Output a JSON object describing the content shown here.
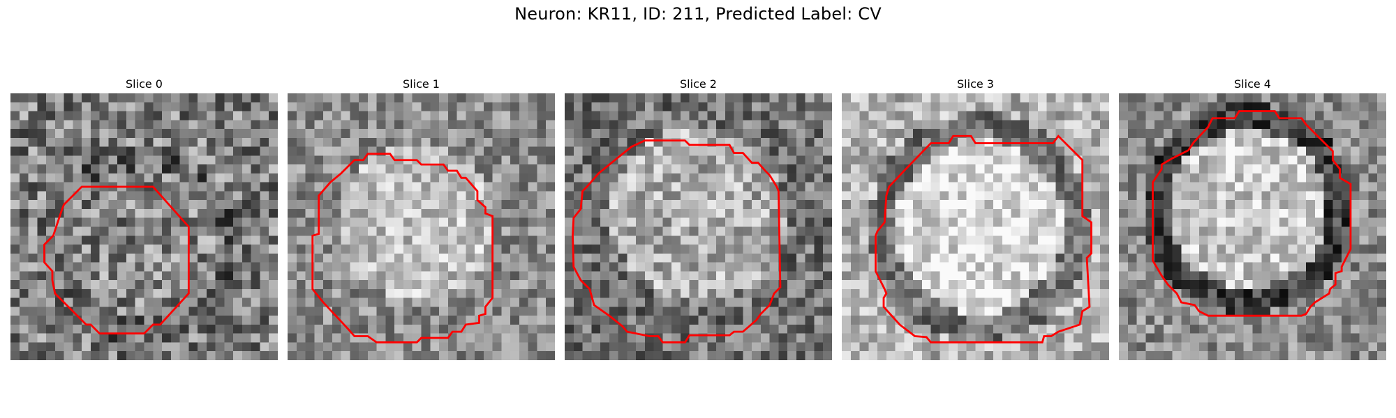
{
  "figure": {
    "title": "Neuron: KR11, ID: 211, Predicted Label: CV"
  },
  "panels": [
    {
      "title": "Slice 0"
    },
    {
      "title": "Slice 1"
    },
    {
      "title": "Slice 2"
    },
    {
      "title": "Slice 3"
    },
    {
      "title": "Slice 4"
    }
  ],
  "colors": {
    "contour": "#ff0000",
    "colormap": "gray"
  }
}
